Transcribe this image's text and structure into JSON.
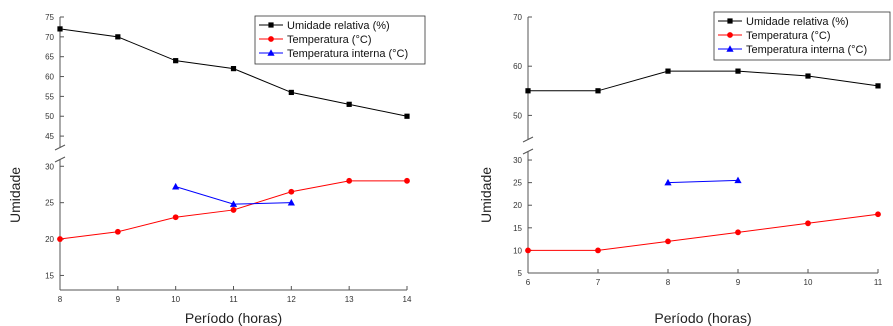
{
  "chart_data": [
    {
      "type": "line",
      "xlabel": "Período (horas)",
      "ylabel": "Umidade",
      "xlim": [
        8,
        14
      ],
      "xticks": [
        8,
        9,
        10,
        11,
        12,
        13,
        14
      ],
      "y_break": true,
      "ylim_lower": [
        13,
        31
      ],
      "ylim_upper": [
        42,
        75
      ],
      "yticks_lower": [
        15,
        20,
        25,
        30
      ],
      "yticks_upper": [
        45,
        50,
        55,
        60,
        65,
        70,
        75
      ],
      "legend_position": "top-right",
      "series": [
        {
          "name": "Umidade relativa (%)",
          "color": "#000000",
          "marker": "square",
          "x": [
            8,
            9,
            10,
            11,
            12,
            13,
            14
          ],
          "y": [
            72,
            70,
            64,
            62,
            56,
            53,
            50
          ]
        },
        {
          "name": "Temperatura (°C)",
          "color": "#ff0000",
          "marker": "circle",
          "x": [
            8,
            9,
            10,
            11,
            12,
            13,
            14
          ],
          "y": [
            20,
            21,
            23,
            24,
            26.5,
            28,
            28
          ]
        },
        {
          "name": "Temperatura interna (°C)",
          "color": "#0000ff",
          "marker": "triangle",
          "x": [
            10,
            11,
            12
          ],
          "y": [
            27.2,
            24.8,
            25
          ]
        }
      ]
    },
    {
      "type": "line",
      "xlabel": "Período (horas)",
      "ylabel": "Umidade",
      "xlim": [
        6,
        11
      ],
      "xticks": [
        6,
        7,
        8,
        9,
        10,
        11
      ],
      "y_break": true,
      "ylim_lower": [
        5,
        32
      ],
      "ylim_upper": [
        45,
        70
      ],
      "yticks_lower": [
        5,
        10,
        15,
        20,
        25,
        30
      ],
      "yticks_upper": [
        50,
        60,
        70
      ],
      "legend_position": "top-right",
      "series": [
        {
          "name": "Umidade relativa (%)",
          "color": "#000000",
          "marker": "square",
          "x": [
            6,
            7,
            8,
            9,
            10,
            11
          ],
          "y": [
            55,
            55,
            59,
            59,
            58,
            56
          ]
        },
        {
          "name": "Temperatura (°C)",
          "color": "#ff0000",
          "marker": "circle",
          "x": [
            6,
            7,
            8,
            9,
            10,
            11
          ],
          "y": [
            10,
            10,
            12,
            14,
            16,
            18
          ]
        },
        {
          "name": "Temperatura interna (°C)",
          "color": "#0000ff",
          "marker": "triangle",
          "x": [
            8,
            9
          ],
          "y": [
            25,
            25.5
          ]
        }
      ]
    }
  ]
}
